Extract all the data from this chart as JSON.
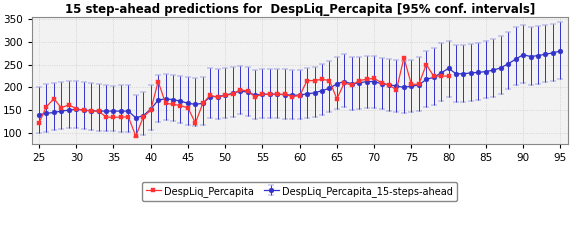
{
  "title": "15 step-ahead predictions for  DespLiq_Percapita [95% conf. intervals]",
  "x_actual": [
    25,
    26,
    27,
    28,
    29,
    30,
    31,
    32,
    33,
    34,
    35,
    36,
    37,
    38,
    39,
    40,
    41,
    42,
    43,
    44,
    45,
    46,
    47,
    48,
    49,
    50,
    51,
    52,
    53,
    54,
    55,
    56,
    57,
    58,
    59,
    60,
    61,
    62,
    63,
    64,
    65,
    66,
    67,
    68,
    69,
    70,
    71,
    72,
    73,
    74,
    75,
    76,
    77,
    78,
    79,
    80
  ],
  "y_actual": [
    122,
    158,
    175,
    155,
    162,
    153,
    150,
    148,
    148,
    135,
    134,
    135,
    135,
    93,
    135,
    150,
    213,
    165,
    163,
    160,
    155,
    122,
    165,
    183,
    178,
    183,
    185,
    195,
    192,
    180,
    185,
    185,
    185,
    185,
    180,
    182,
    215,
    215,
    218,
    215,
    175,
    210,
    205,
    215,
    218,
    220,
    210,
    205,
    195,
    265,
    207,
    207,
    250,
    225,
    225,
    225
  ],
  "x_pred": [
    25,
    26,
    27,
    28,
    29,
    30,
    31,
    32,
    33,
    34,
    35,
    36,
    37,
    38,
    39,
    40,
    41,
    42,
    43,
    44,
    45,
    46,
    47,
    48,
    49,
    50,
    51,
    52,
    53,
    54,
    55,
    56,
    57,
    58,
    59,
    60,
    61,
    62,
    63,
    64,
    65,
    66,
    67,
    68,
    69,
    70,
    71,
    72,
    73,
    74,
    75,
    76,
    77,
    78,
    79,
    80,
    81,
    82,
    83,
    84,
    85,
    86,
    87,
    88,
    89,
    90,
    91,
    92,
    93,
    94,
    95
  ],
  "y_pred": [
    140,
    143,
    145,
    148,
    150,
    152,
    150,
    149,
    148,
    148,
    148,
    148,
    148,
    133,
    138,
    152,
    172,
    175,
    173,
    170,
    165,
    163,
    165,
    180,
    180,
    183,
    187,
    192,
    190,
    183,
    185,
    185,
    185,
    184,
    183,
    183,
    186,
    188,
    193,
    198,
    208,
    213,
    208,
    210,
    213,
    213,
    208,
    206,
    203,
    200,
    203,
    205,
    218,
    222,
    232,
    242,
    230,
    230,
    232,
    233,
    235,
    238,
    243,
    252,
    262,
    272,
    268,
    270,
    273,
    276,
    280
  ],
  "y_pred_upper": [
    200,
    208,
    210,
    213,
    215,
    215,
    213,
    210,
    208,
    206,
    204,
    205,
    205,
    183,
    190,
    205,
    228,
    230,
    228,
    226,
    222,
    220,
    223,
    243,
    240,
    243,
    246,
    248,
    245,
    238,
    240,
    240,
    240,
    240,
    238,
    238,
    243,
    246,
    252,
    258,
    268,
    273,
    266,
    268,
    270,
    270,
    265,
    263,
    260,
    258,
    260,
    266,
    280,
    286,
    298,
    303,
    293,
    293,
    296,
    298,
    303,
    306,
    313,
    322,
    332,
    338,
    332,
    335,
    338,
    340,
    343
  ],
  "y_pred_lower": [
    100,
    103,
    106,
    108,
    110,
    110,
    108,
    106,
    105,
    104,
    104,
    103,
    103,
    90,
    96,
    106,
    124,
    128,
    126,
    122,
    118,
    116,
    118,
    132,
    130,
    132,
    135,
    142,
    138,
    130,
    132,
    132,
    132,
    130,
    130,
    130,
    132,
    136,
    140,
    146,
    152,
    156,
    150,
    152,
    155,
    155,
    152,
    148,
    146,
    143,
    145,
    148,
    158,
    162,
    170,
    180,
    168,
    168,
    170,
    173,
    176,
    180,
    185,
    196,
    206,
    210,
    206,
    208,
    212,
    215,
    218
  ],
  "xlim": [
    24,
    96
  ],
  "ylim": [
    75,
    355
  ],
  "xticks": [
    25,
    30,
    35,
    40,
    45,
    50,
    55,
    60,
    65,
    70,
    75,
    80,
    85,
    90,
    95
  ],
  "yticks": [
    100,
    150,
    200,
    250,
    300,
    350
  ],
  "actual_color": "#FF3333",
  "pred_color": "#3333CC",
  "grid_color": "#CCCCCC",
  "bg_color": "#F2F2F2",
  "legend_label_actual": "DespLiq_Percapita",
  "legend_label_pred": "DespLiq_Percapita_15-steps-ahead",
  "title_fontsize": 8.5,
  "tick_fontsize": 7.5
}
